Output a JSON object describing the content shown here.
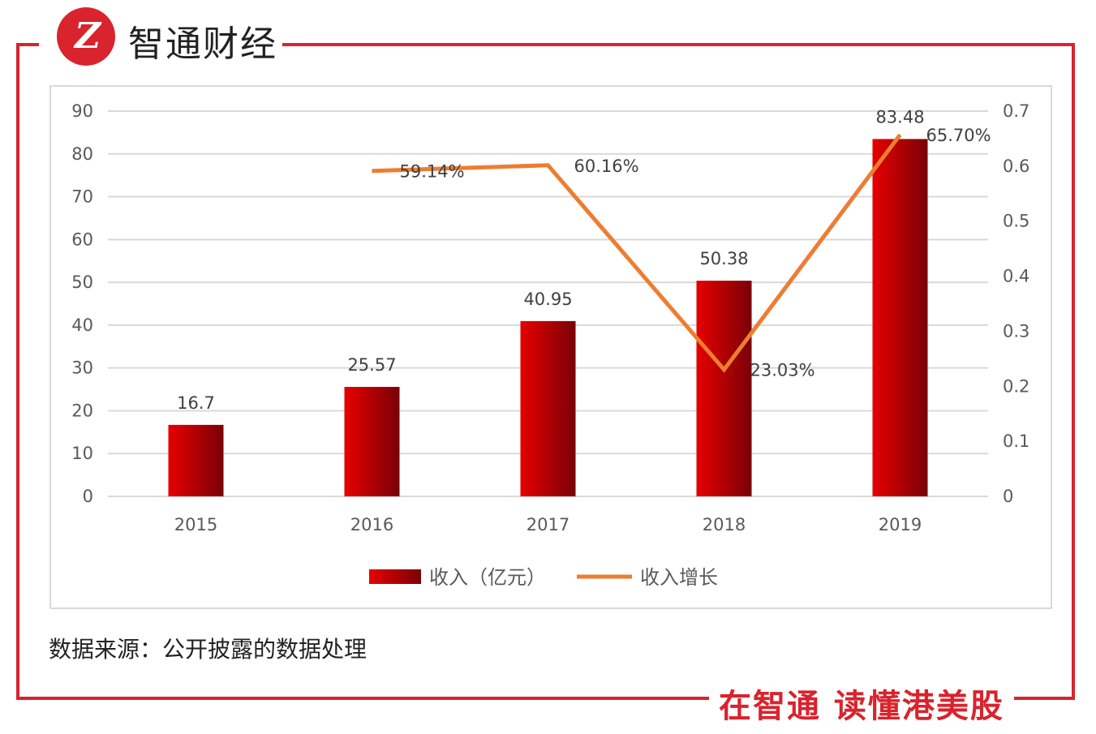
{
  "brand": {
    "name": "智通财经",
    "logo_text": "Z",
    "slogan": "在智通  读懂港美股"
  },
  "source_note": "数据来源：公开披露的数据处理",
  "colors": {
    "frame": "#d9232d",
    "bar_light": "#e60000",
    "bar_dark": "#7a0008",
    "line": "#ed7d31",
    "grid": "#d9d9d9"
  },
  "chart_data": {
    "type": "bar",
    "categories": [
      "2015",
      "2016",
      "2017",
      "2018",
      "2019"
    ],
    "series": [
      {
        "name": "收入（亿元）",
        "type": "bar",
        "axis": "left",
        "values": [
          16.7,
          25.57,
          40.95,
          50.38,
          83.48
        ],
        "labels": [
          "16.7",
          "25.57",
          "40.95",
          "50.38",
          "83.48"
        ]
      },
      {
        "name": "收入增长",
        "type": "line",
        "axis": "right",
        "values": [
          null,
          0.5914,
          0.6016,
          0.2303,
          0.657
        ],
        "labels": [
          "",
          "59.14%",
          "60.16%",
          "23.03%",
          "65.70%"
        ]
      }
    ],
    "y_left": {
      "min": 0,
      "max": 90,
      "step": 10,
      "ticks": [
        "0",
        "10",
        "20",
        "30",
        "40",
        "50",
        "60",
        "70",
        "80",
        "90"
      ]
    },
    "y_right": {
      "min": 0,
      "max": 0.7,
      "step": 0.1,
      "ticks": [
        "0",
        "0.1",
        "0.2",
        "0.3",
        "0.4",
        "0.5",
        "0.6",
        "0.7"
      ]
    },
    "grid": true,
    "legend_position": "bottom"
  }
}
